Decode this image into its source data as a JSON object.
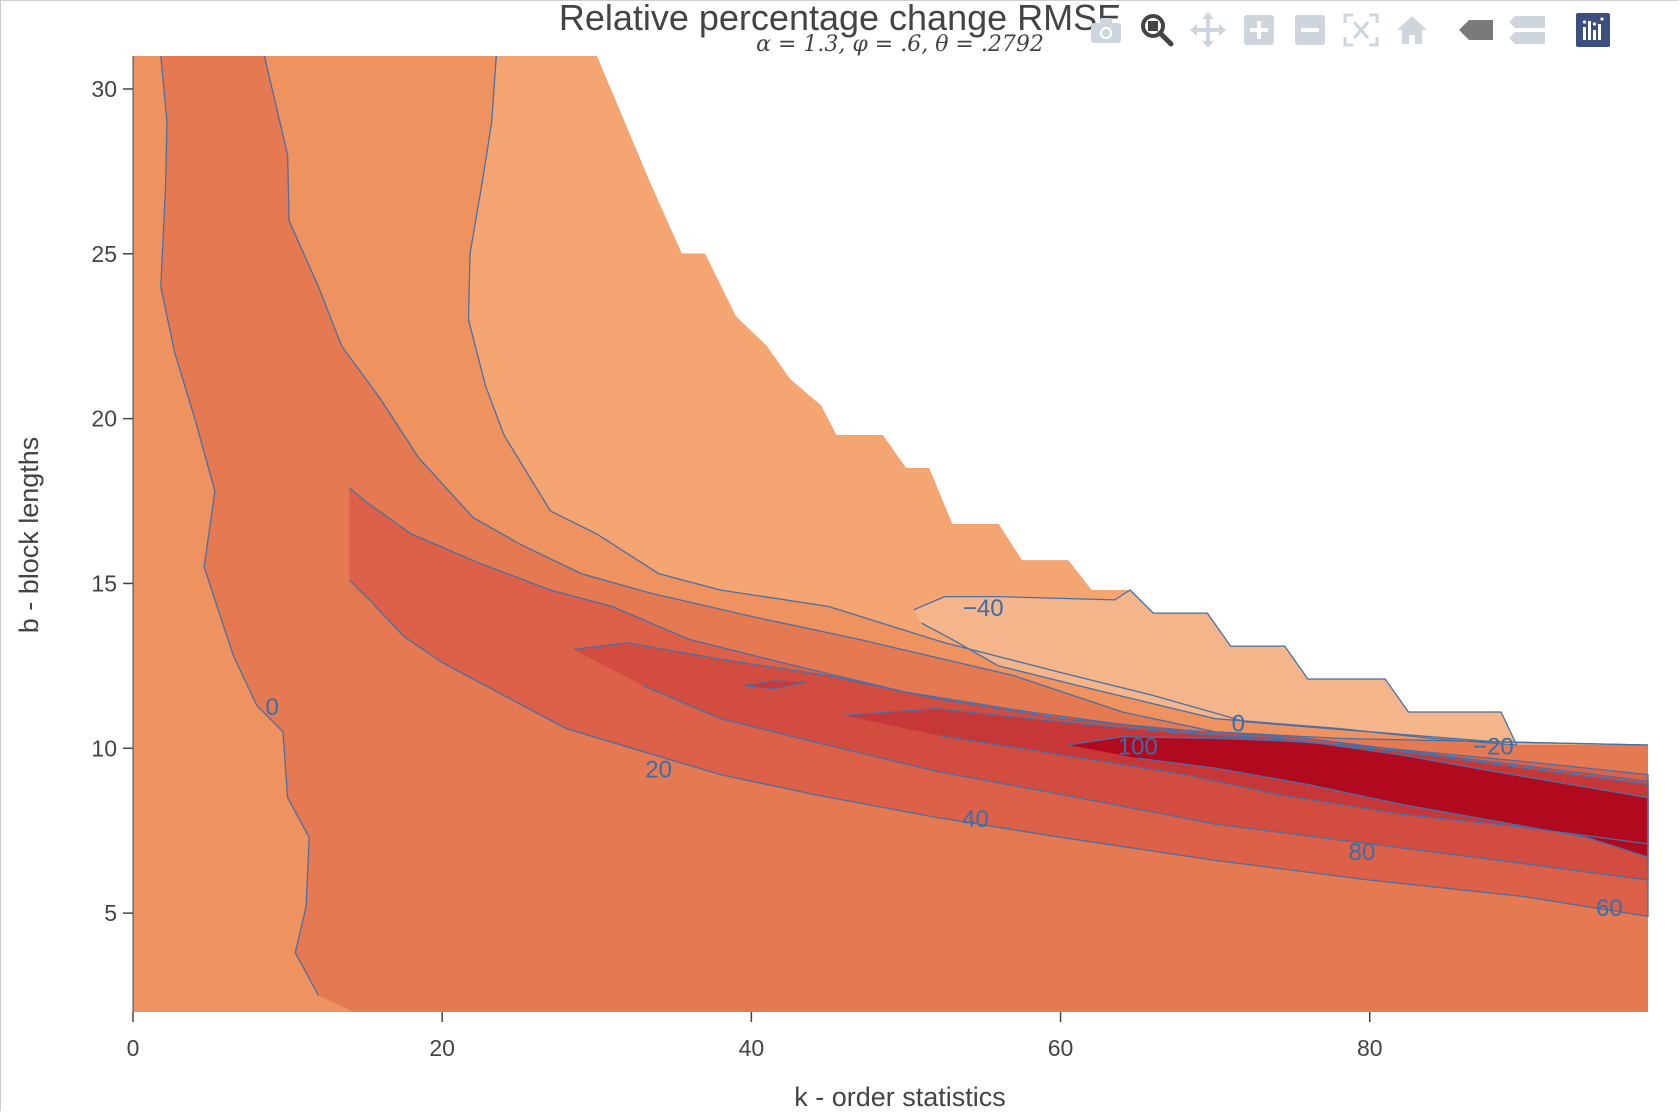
{
  "title": "Relative percentage change RMSE",
  "subtitle": "α = 1.3, φ = .6, θ = .2792",
  "modebar": {
    "icons": [
      "camera-icon",
      "zoom-icon",
      "pan-icon",
      "zoom-in-icon",
      "zoom-out-icon",
      "autoscale-icon",
      "home-icon",
      "hover-closest-icon",
      "hover-compare-icon",
      "plotly-logo-icon"
    ]
  },
  "chart_data": {
    "type": "contour",
    "title": "Relative percentage change RMSE",
    "subtitle": "α = 1.3, φ = .6, θ = .2792",
    "xlabel": "k - order statistics",
    "ylabel": "b - block lengths",
    "xlim": [
      0,
      98
    ],
    "ylim": [
      2,
      31
    ],
    "xticks": [
      0,
      20,
      40,
      60,
      80
    ],
    "yticks": [
      5,
      10,
      15,
      20,
      25,
      30
    ],
    "x_tick_labels": [
      "0",
      "20",
      "40",
      "60",
      "80"
    ],
    "y_tick_labels": [
      "5",
      "10",
      "15",
      "20",
      "25",
      "30"
    ],
    "contour_levels": [
      -40,
      -20,
      0,
      20,
      40,
      60,
      80,
      100
    ],
    "contour_labels": [
      {
        "text": "−40",
        "x": 55,
        "y": 14.2
      },
      {
        "text": "0",
        "x": 9,
        "y": 11.2
      },
      {
        "text": "20",
        "x": 34,
        "y": 9.3
      },
      {
        "text": "40",
        "x": 54.5,
        "y": 7.8
      },
      {
        "text": "0",
        "x": 71.5,
        "y": 10.7
      },
      {
        "text": "100",
        "x": 65,
        "y": 10
      },
      {
        "text": "−20",
        "x": 88,
        "y": 10
      },
      {
        "text": "80",
        "x": 79.5,
        "y": 6.8
      },
      {
        "text": "60",
        "x": 95.5,
        "y": 5.1
      }
    ],
    "fill_colors": {
      "lt_minus40": "#f5b58a",
      "minus40_to_minus20": "#f4a572",
      "minus20_to_0": "#ee925f",
      "0_to_20": "#e57a52",
      "20_to_40": "#dc6148",
      "40_to_60": "#d24c3f",
      "60_to_80": "#c83737",
      "gt_80": "#b10a1f"
    },
    "line_color": "#4a6fa5",
    "grid": false,
    "legend": "none"
  }
}
